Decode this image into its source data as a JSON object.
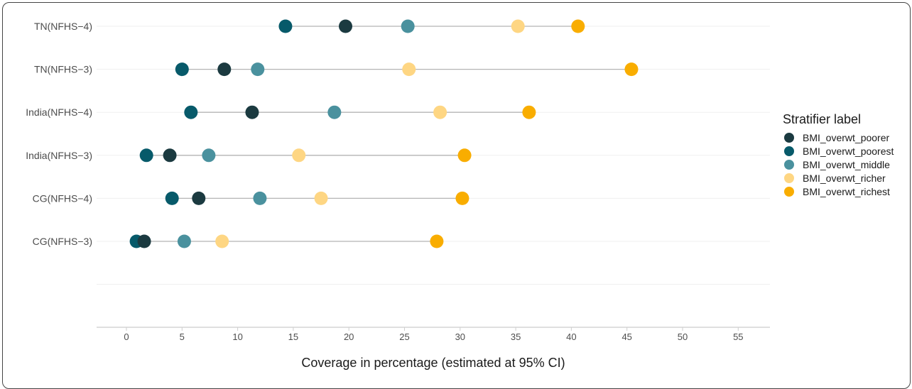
{
  "chart_data": {
    "type": "dot",
    "title": "",
    "xlabel": "Coverage in percentage (estimated at 95% CI)",
    "ylabel": "",
    "xlim": [
      -3,
      57
    ],
    "xticks": [
      0,
      5,
      10,
      15,
      20,
      25,
      30,
      35,
      40,
      45,
      50,
      55
    ],
    "categories": [
      "TN(NFHS−4)",
      "TN(NFHS−3)",
      "India(NFHS−4)",
      "India(NFHS−3)",
      "CG(NFHS−4)",
      "CG(NFHS−3)"
    ],
    "series": [
      {
        "name": "BMI_overwt_poorer",
        "color": "#1b3a40",
        "values": [
          19.7,
          8.8,
          11.3,
          3.9,
          6.5,
          1.6
        ]
      },
      {
        "name": "BMI_overwt_poorest",
        "color": "#075a6a",
        "values": [
          14.3,
          5.0,
          5.8,
          1.8,
          4.1,
          0.9
        ]
      },
      {
        "name": "BMI_overwt_middle",
        "color": "#4a919e",
        "values": [
          25.3,
          11.8,
          18.7,
          7.4,
          12.0,
          5.2
        ]
      },
      {
        "name": "BMI_overwt_richer",
        "color": "#fed683",
        "values": [
          35.2,
          25.4,
          28.2,
          15.5,
          17.5,
          8.6
        ]
      },
      {
        "name": "BMI_overwt_richest",
        "color": "#f9ad00",
        "values": [
          40.6,
          45.4,
          36.2,
          30.4,
          30.2,
          27.9
        ]
      }
    ],
    "legend": {
      "title": "Stratifier label",
      "position": "right"
    },
    "grid": true
  }
}
